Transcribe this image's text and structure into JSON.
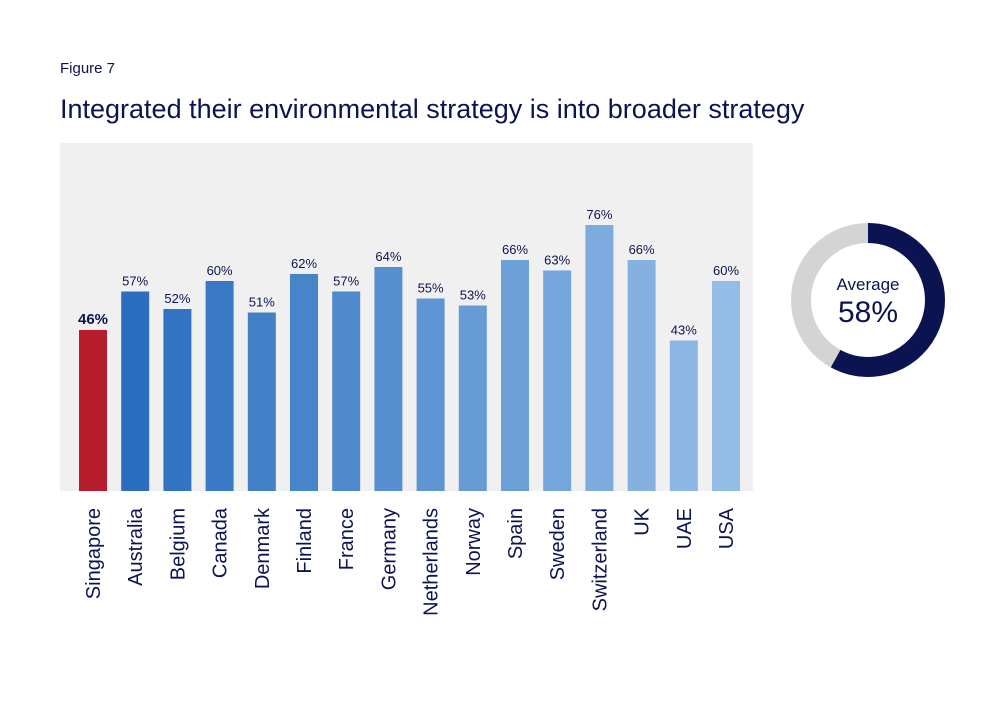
{
  "figure_label": "Figure 7",
  "title": "Integrated their environmental strategy is into broader strategy",
  "chart_data": [
    {
      "type": "bar",
      "categories": [
        "Singapore",
        "Australia",
        "Belgium",
        "Canada",
        "Denmark",
        "Finland",
        "France",
        "Germany",
        "Netherlands",
        "Norway",
        "Spain",
        "Sweden",
        "Switzerland",
        "UK",
        "UAE",
        "USA"
      ],
      "values": [
        46,
        57,
        52,
        60,
        51,
        62,
        57,
        64,
        55,
        53,
        66,
        63,
        76,
        66,
        43,
        60
      ],
      "value_labels": [
        "46%",
        "57%",
        "52%",
        "60%",
        "51%",
        "62%",
        "57%",
        "64%",
        "55%",
        "53%",
        "66%",
        "63%",
        "76%",
        "66%",
        "43%",
        "60%"
      ],
      "unit": "%",
      "ylim": [
        0,
        100
      ],
      "highlight_category": "Singapore",
      "colors": {
        "highlight": "#b71c2c",
        "bar_gradient_start": "#2a6ebf",
        "bar_gradient_end": "#93bce6",
        "plot_background": "#f0f0f0",
        "text": "#0b1450"
      },
      "grid": false
    },
    {
      "type": "pie",
      "variant": "donut",
      "label": "Average",
      "value": 58,
      "value_label": "58%",
      "colors": {
        "filled": "#0b1450",
        "remainder": "#d4d4d4"
      }
    }
  ]
}
